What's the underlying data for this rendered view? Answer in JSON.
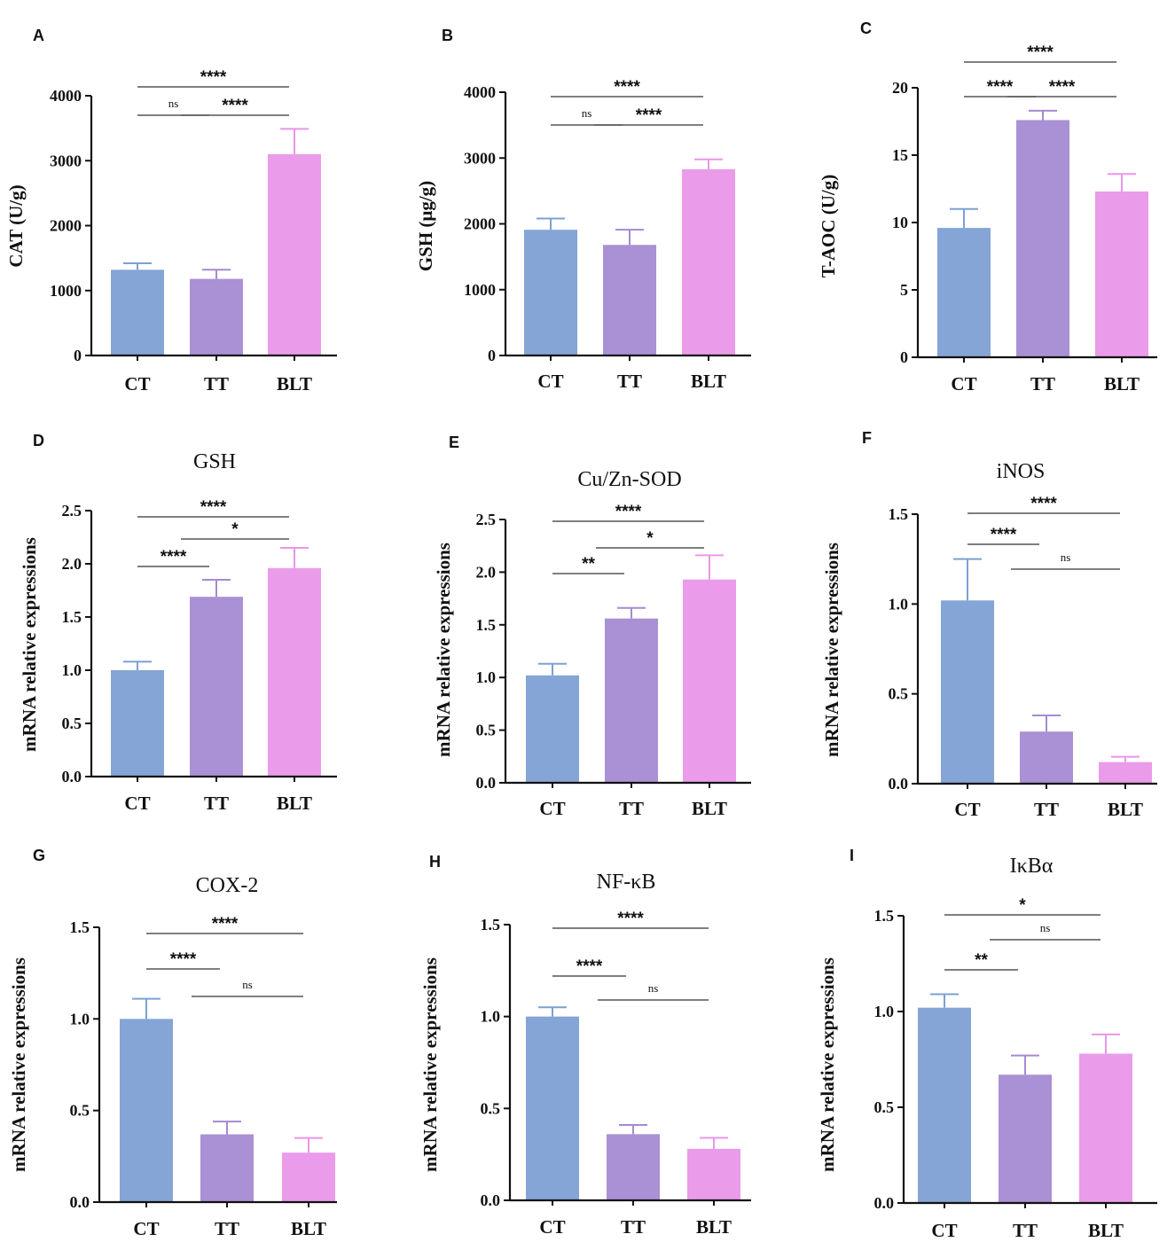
{
  "figure": {
    "colors": {
      "CT": "#7da0d3",
      "TT": "#a58ad2",
      "BLT": "#e996e8",
      "axis": "#111111"
    }
  },
  "chart_data": [
    {
      "id": "A",
      "letter": "A",
      "type": "bar",
      "title": "",
      "ylabel": "CAT (U/g)",
      "categories": [
        "CT",
        "TT",
        "BLT"
      ],
      "values": [
        1320,
        1180,
        3100
      ],
      "errors": [
        100,
        140,
        390
      ],
      "ylim": [
        0,
        4000
      ],
      "yticks": [
        0,
        1000,
        2000,
        3000,
        4000
      ],
      "significance": [
        {
          "from": 1,
          "to": 2,
          "label": "ns"
        },
        {
          "from": 2,
          "to": 3,
          "label": "****"
        },
        {
          "from": 1,
          "to": 3,
          "label": "****"
        }
      ]
    },
    {
      "id": "B",
      "letter": "B",
      "type": "bar",
      "title": "",
      "ylabel": "GSH (μg/g)",
      "categories": [
        "CT",
        "TT",
        "BLT"
      ],
      "values": [
        1910,
        1680,
        2830
      ],
      "errors": [
        170,
        230,
        150
      ],
      "ylim": [
        0,
        4000
      ],
      "yticks": [
        0,
        1000,
        2000,
        3000,
        4000
      ],
      "significance": [
        {
          "from": 1,
          "to": 2,
          "label": "ns"
        },
        {
          "from": 2,
          "to": 3,
          "label": "****"
        },
        {
          "from": 1,
          "to": 3,
          "label": "****"
        }
      ]
    },
    {
      "id": "C",
      "letter": "C",
      "type": "bar",
      "title": "",
      "ylabel": "T-AOC (U/g)",
      "categories": [
        "CT",
        "TT",
        "BLT"
      ],
      "values": [
        9.6,
        17.6,
        12.3
      ],
      "errors": [
        1.4,
        0.7,
        1.3
      ],
      "ylim": [
        0,
        20
      ],
      "yticks": [
        0,
        5,
        10,
        15,
        20
      ],
      "significance": [
        {
          "from": 1,
          "to": 2,
          "label": "****"
        },
        {
          "from": 2,
          "to": 3,
          "label": "****"
        },
        {
          "from": 1,
          "to": 3,
          "label": "****"
        }
      ]
    },
    {
      "id": "D",
      "letter": "D",
      "type": "bar",
      "title": "GSH",
      "ylabel": "mRNA relative expressions",
      "categories": [
        "CT",
        "TT",
        "BLT"
      ],
      "values": [
        1.0,
        1.69,
        1.96
      ],
      "errors": [
        0.08,
        0.16,
        0.19
      ],
      "ylim": [
        0,
        2.5
      ],
      "yticks": [
        "0.0",
        "0.5",
        "1.0",
        "1.5",
        "2.0",
        "2.5"
      ],
      "significance": [
        {
          "from": 1,
          "to": 2,
          "label": "****"
        },
        {
          "from": 2,
          "to": 3,
          "label": "*"
        },
        {
          "from": 1,
          "to": 3,
          "label": "****"
        }
      ]
    },
    {
      "id": "E",
      "letter": "E",
      "type": "bar",
      "title": "Cu/Zn-SOD",
      "ylabel": "mRNA relative expressions",
      "categories": [
        "CT",
        "TT",
        "BLT"
      ],
      "values": [
        1.02,
        1.56,
        1.93
      ],
      "errors": [
        0.11,
        0.1,
        0.23
      ],
      "ylim": [
        0,
        2.5
      ],
      "yticks": [
        "0.0",
        "0.5",
        "1.0",
        "1.5",
        "2.0",
        "2.5"
      ],
      "significance": [
        {
          "from": 1,
          "to": 2,
          "label": "**"
        },
        {
          "from": 2,
          "to": 3,
          "label": "*"
        },
        {
          "from": 1,
          "to": 3,
          "label": "****"
        }
      ]
    },
    {
      "id": "F",
      "letter": "F",
      "type": "bar",
      "title": "iNOS",
      "ylabel": "mRNA relative expressions",
      "categories": [
        "CT",
        "TT",
        "BLT"
      ],
      "values": [
        1.02,
        0.29,
        0.12
      ],
      "errors": [
        0.23,
        0.09,
        0.03
      ],
      "ylim": [
        0,
        1.5
      ],
      "yticks": [
        "0.0",
        "0.5",
        "1.0",
        "1.5"
      ],
      "significance": [
        {
          "from": 1,
          "to": 2,
          "label": "****"
        },
        {
          "from": 2,
          "to": 3,
          "label": "ns"
        },
        {
          "from": 1,
          "to": 3,
          "label": "****"
        }
      ]
    },
    {
      "id": "G",
      "letter": "G",
      "type": "bar",
      "title": "COX-2",
      "ylabel": "mRNA relative expressions",
      "categories": [
        "CT",
        "TT",
        "BLT"
      ],
      "values": [
        1.0,
        0.37,
        0.27
      ],
      "errors": [
        0.11,
        0.07,
        0.08
      ],
      "ylim": [
        0,
        1.5
      ],
      "yticks": [
        "0.0",
        "0.5",
        "1.0",
        "1.5"
      ],
      "significance": [
        {
          "from": 1,
          "to": 2,
          "label": "****"
        },
        {
          "from": 2,
          "to": 3,
          "label": "ns"
        },
        {
          "from": 1,
          "to": 3,
          "label": "****"
        }
      ]
    },
    {
      "id": "H",
      "letter": "H",
      "type": "bar",
      "title": "NF-κB",
      "ylabel": "mRNA relative expressions",
      "categories": [
        "CT",
        "TT",
        "BLT"
      ],
      "values": [
        1.0,
        0.36,
        0.28
      ],
      "errors": [
        0.05,
        0.05,
        0.06
      ],
      "ylim": [
        0,
        1.5
      ],
      "yticks": [
        "0.0",
        "0.5",
        "1.0",
        "1.5"
      ],
      "significance": [
        {
          "from": 1,
          "to": 2,
          "label": "****"
        },
        {
          "from": 2,
          "to": 3,
          "label": "ns"
        },
        {
          "from": 1,
          "to": 3,
          "label": "****"
        }
      ]
    },
    {
      "id": "I",
      "letter": "I",
      "type": "bar",
      "title": "IκBα",
      "ylabel": "mRNA relative expressions",
      "categories": [
        "CT",
        "TT",
        "BLT"
      ],
      "values": [
        1.02,
        0.67,
        0.78
      ],
      "errors": [
        0.07,
        0.1,
        0.1
      ],
      "ylim": [
        0,
        1.5
      ],
      "yticks": [
        "0.0",
        "0.5",
        "1.0",
        "1.5"
      ],
      "significance": [
        {
          "from": 1,
          "to": 2,
          "label": "**"
        },
        {
          "from": 2,
          "to": 3,
          "label": "ns"
        },
        {
          "from": 1,
          "to": 3,
          "label": "*"
        }
      ]
    }
  ]
}
